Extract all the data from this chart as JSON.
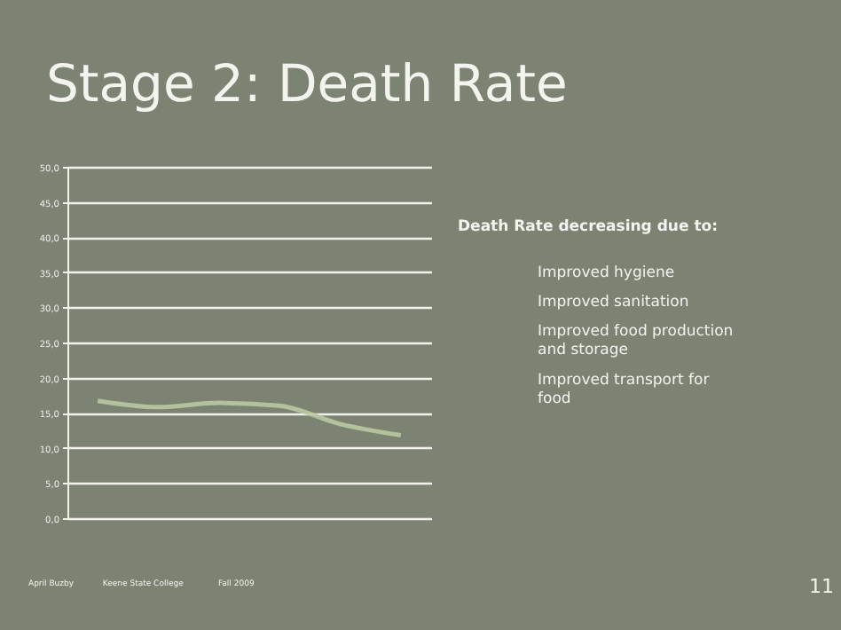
{
  "chart_data": {
    "type": "line",
    "title": "Stage 2: Death Rate",
    "categories": [
      null,
      null,
      null,
      null,
      null,
      null
    ],
    "series": [
      {
        "color": "#b9c9a2",
        "values": [
          16.7,
          15.8,
          16.4,
          16.0,
          13.4,
          11.8
        ]
      }
    ],
    "ylim": [
      0,
      50
    ],
    "yticks": [
      {
        "value": 0,
        "label": "0,0"
      },
      {
        "value": 5,
        "label": "5,0"
      },
      {
        "value": 10,
        "label": "10,0"
      },
      {
        "value": 15,
        "label": "15,0"
      },
      {
        "value": 20,
        "label": "20,0"
      },
      {
        "value": 25,
        "label": "25,0"
      },
      {
        "value": 30,
        "label": "30,0"
      },
      {
        "value": 35,
        "label": "35,0"
      },
      {
        "value": 40,
        "label": "40,0"
      },
      {
        "value": 45,
        "label": "45,0"
      },
      {
        "value": 50,
        "label": "50,0"
      }
    ],
    "grid": "y",
    "tick_labels": "y",
    "legend": false,
    "marker": "none",
    "line_style": "solid",
    "annotations": [
      "Death Rate decreasing due to:",
      "Improved hygiene",
      "Improved sanitation",
      "Improved food production and storage",
      "Improved transport for food",
      "April Buzby",
      "Keene State College",
      "Fall 2009",
      "11"
    ]
  }
}
